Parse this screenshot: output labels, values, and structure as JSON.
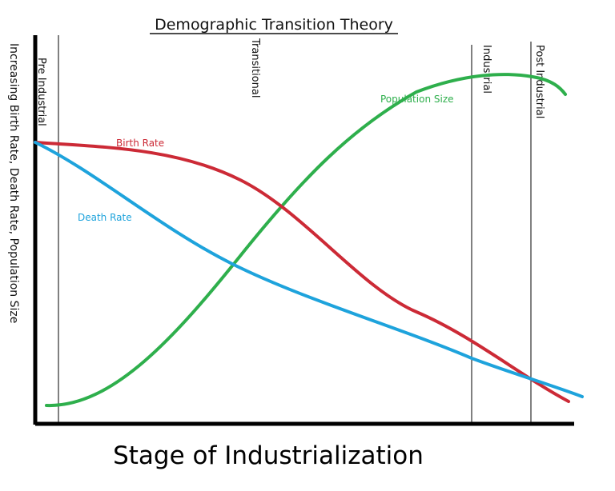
{
  "chart_data": {
    "type": "line",
    "title": "Demographic Transition Theory",
    "xlabel": "Stage of Industrialization",
    "ylabel": "Increasing Birth Rate, Death Rate, Population Size",
    "stages": [
      "Pre Industrial",
      "Transitional",
      "Industrial",
      "Post Industrial"
    ],
    "series": [
      {
        "name": "Birth Rate",
        "color": "#cc2a36"
      },
      {
        "name": "Death Rate",
        "color": "#1ea3dc"
      },
      {
        "name": "Population Size",
        "color": "#2eaf4c"
      }
    ]
  }
}
